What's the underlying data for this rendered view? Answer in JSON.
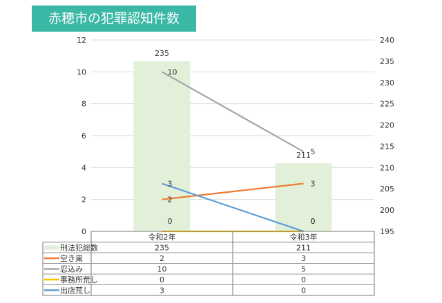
{
  "title": "赤穂市の犯罪認知件数",
  "chart_data": {
    "type": "bar+line",
    "categories": [
      "令和2年",
      "令和3年"
    ],
    "left_axis": {
      "ylim": [
        0,
        12
      ],
      "ticks": [
        0,
        2,
        4,
        6,
        8,
        10,
        12
      ]
    },
    "right_axis": {
      "ylim": [
        195,
        240
      ],
      "ticks": [
        195,
        200,
        205,
        210,
        215,
        220,
        225,
        230,
        235,
        240
      ]
    },
    "grid": true,
    "legend": "data-table",
    "series": [
      {
        "name": "刑法犯総数",
        "type": "bar",
        "axis": "right",
        "color": "#e2efd9",
        "values": [
          235,
          211
        ]
      },
      {
        "name": "空き巣",
        "type": "line",
        "axis": "left",
        "color": "#ed7d31",
        "values": [
          2,
          3
        ]
      },
      {
        "name": "忍込み",
        "type": "line",
        "axis": "left",
        "color": "#a5a5a5",
        "values": [
          10,
          5
        ]
      },
      {
        "name": "事務所荒し",
        "type": "line",
        "axis": "left",
        "color": "#ffc000",
        "values": [
          0,
          0
        ]
      },
      {
        "name": "出店荒し",
        "type": "line",
        "axis": "left",
        "color": "#5b9bd5",
        "values": [
          3,
          0
        ]
      }
    ]
  }
}
